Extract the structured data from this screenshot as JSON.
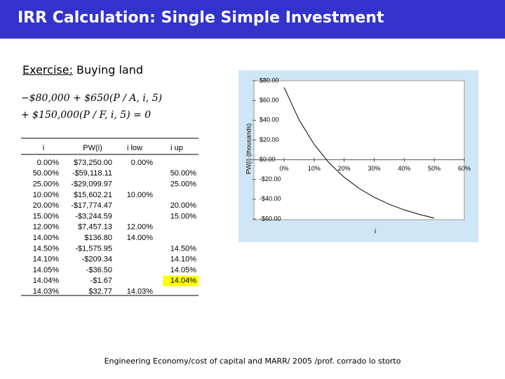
{
  "header": {
    "title": "IRR Calculation:  Single Simple Investment"
  },
  "exercise": {
    "label": "Exercise:",
    "text": " Buying land"
  },
  "equation": [
    "−$80,000 + $650(P / A, i, 5)",
    "+ $150,000(P / F, i, 5) = 0"
  ],
  "table": {
    "columns": [
      "i",
      "PW(i)",
      "i low",
      "i up"
    ],
    "rows": [
      [
        "0.00%",
        "$73,250.00",
        "0.00%",
        null
      ],
      [
        "50.00%",
        "-$59,118.11",
        null,
        "50.00%"
      ],
      [
        "25.00%",
        "-$29,099.97",
        null,
        "25.00%"
      ],
      [
        "10.00%",
        "$15,602.21",
        "10.00%",
        null
      ],
      [
        "20.00%",
        "-$17,774.47",
        null,
        "20.00%"
      ],
      [
        "15.00%",
        "-$3,244.59",
        null,
        "15.00%"
      ],
      [
        "12.00%",
        "$7,457.13",
        "12.00%",
        null
      ],
      [
        "14.00%",
        "$136.80",
        "14.00%",
        null
      ],
      [
        "14.50%",
        "-$1,575.95",
        null,
        "14.50%"
      ],
      [
        "14.10%",
        "-$209.34",
        null,
        "14.10%"
      ],
      [
        "14.05%",
        "-$36.50",
        null,
        "14.05%"
      ],
      [
        "14.04%",
        "-$1.67",
        null,
        "14.04%"
      ],
      [
        "14.03%",
        "$32.77",
        "14.03%",
        null
      ]
    ]
  },
  "chart_data": {
    "type": "line",
    "y_label": "PW(i) (thousands)",
    "x_label": "i",
    "x": [
      0,
      5,
      10,
      15,
      20,
      25,
      30,
      35,
      40,
      45,
      50
    ],
    "values": [
      73.25,
      40.34,
      15.6,
      -3.24,
      -17.77,
      -29.1,
      -38.02,
      -45.11,
      -50.79,
      -55.38,
      -59.12
    ],
    "color": "#000000",
    "xlim": [
      0,
      60
    ],
    "ylim": [
      -60,
      80
    ],
    "xticks": [
      {
        "value": 0,
        "label": "0%"
      },
      {
        "value": 10,
        "label": "10%"
      },
      {
        "value": 20,
        "label": "20%"
      },
      {
        "value": 30,
        "label": "30%"
      },
      {
        "value": 40,
        "label": "40%"
      },
      {
        "value": 50,
        "label": "50%"
      },
      {
        "value": 60,
        "label": "60%"
      }
    ],
    "yticks": [
      {
        "value": 80,
        "label": "$80.00"
      },
      {
        "value": 60,
        "label": "$60.00"
      },
      {
        "value": 40,
        "label": "$40.00"
      },
      {
        "value": 20,
        "label": "$20.00"
      },
      {
        "value": 0,
        "label": "$0.00"
      },
      {
        "value": -20,
        "label": "-$20.00"
      },
      {
        "value": -40,
        "label": "-$40.00"
      },
      {
        "value": -60,
        "label": "-$60.00"
      }
    ]
  },
  "footer": "Engineering Economy/cost of capital and MARR/ 2005 /prof. corrado lo storto"
}
